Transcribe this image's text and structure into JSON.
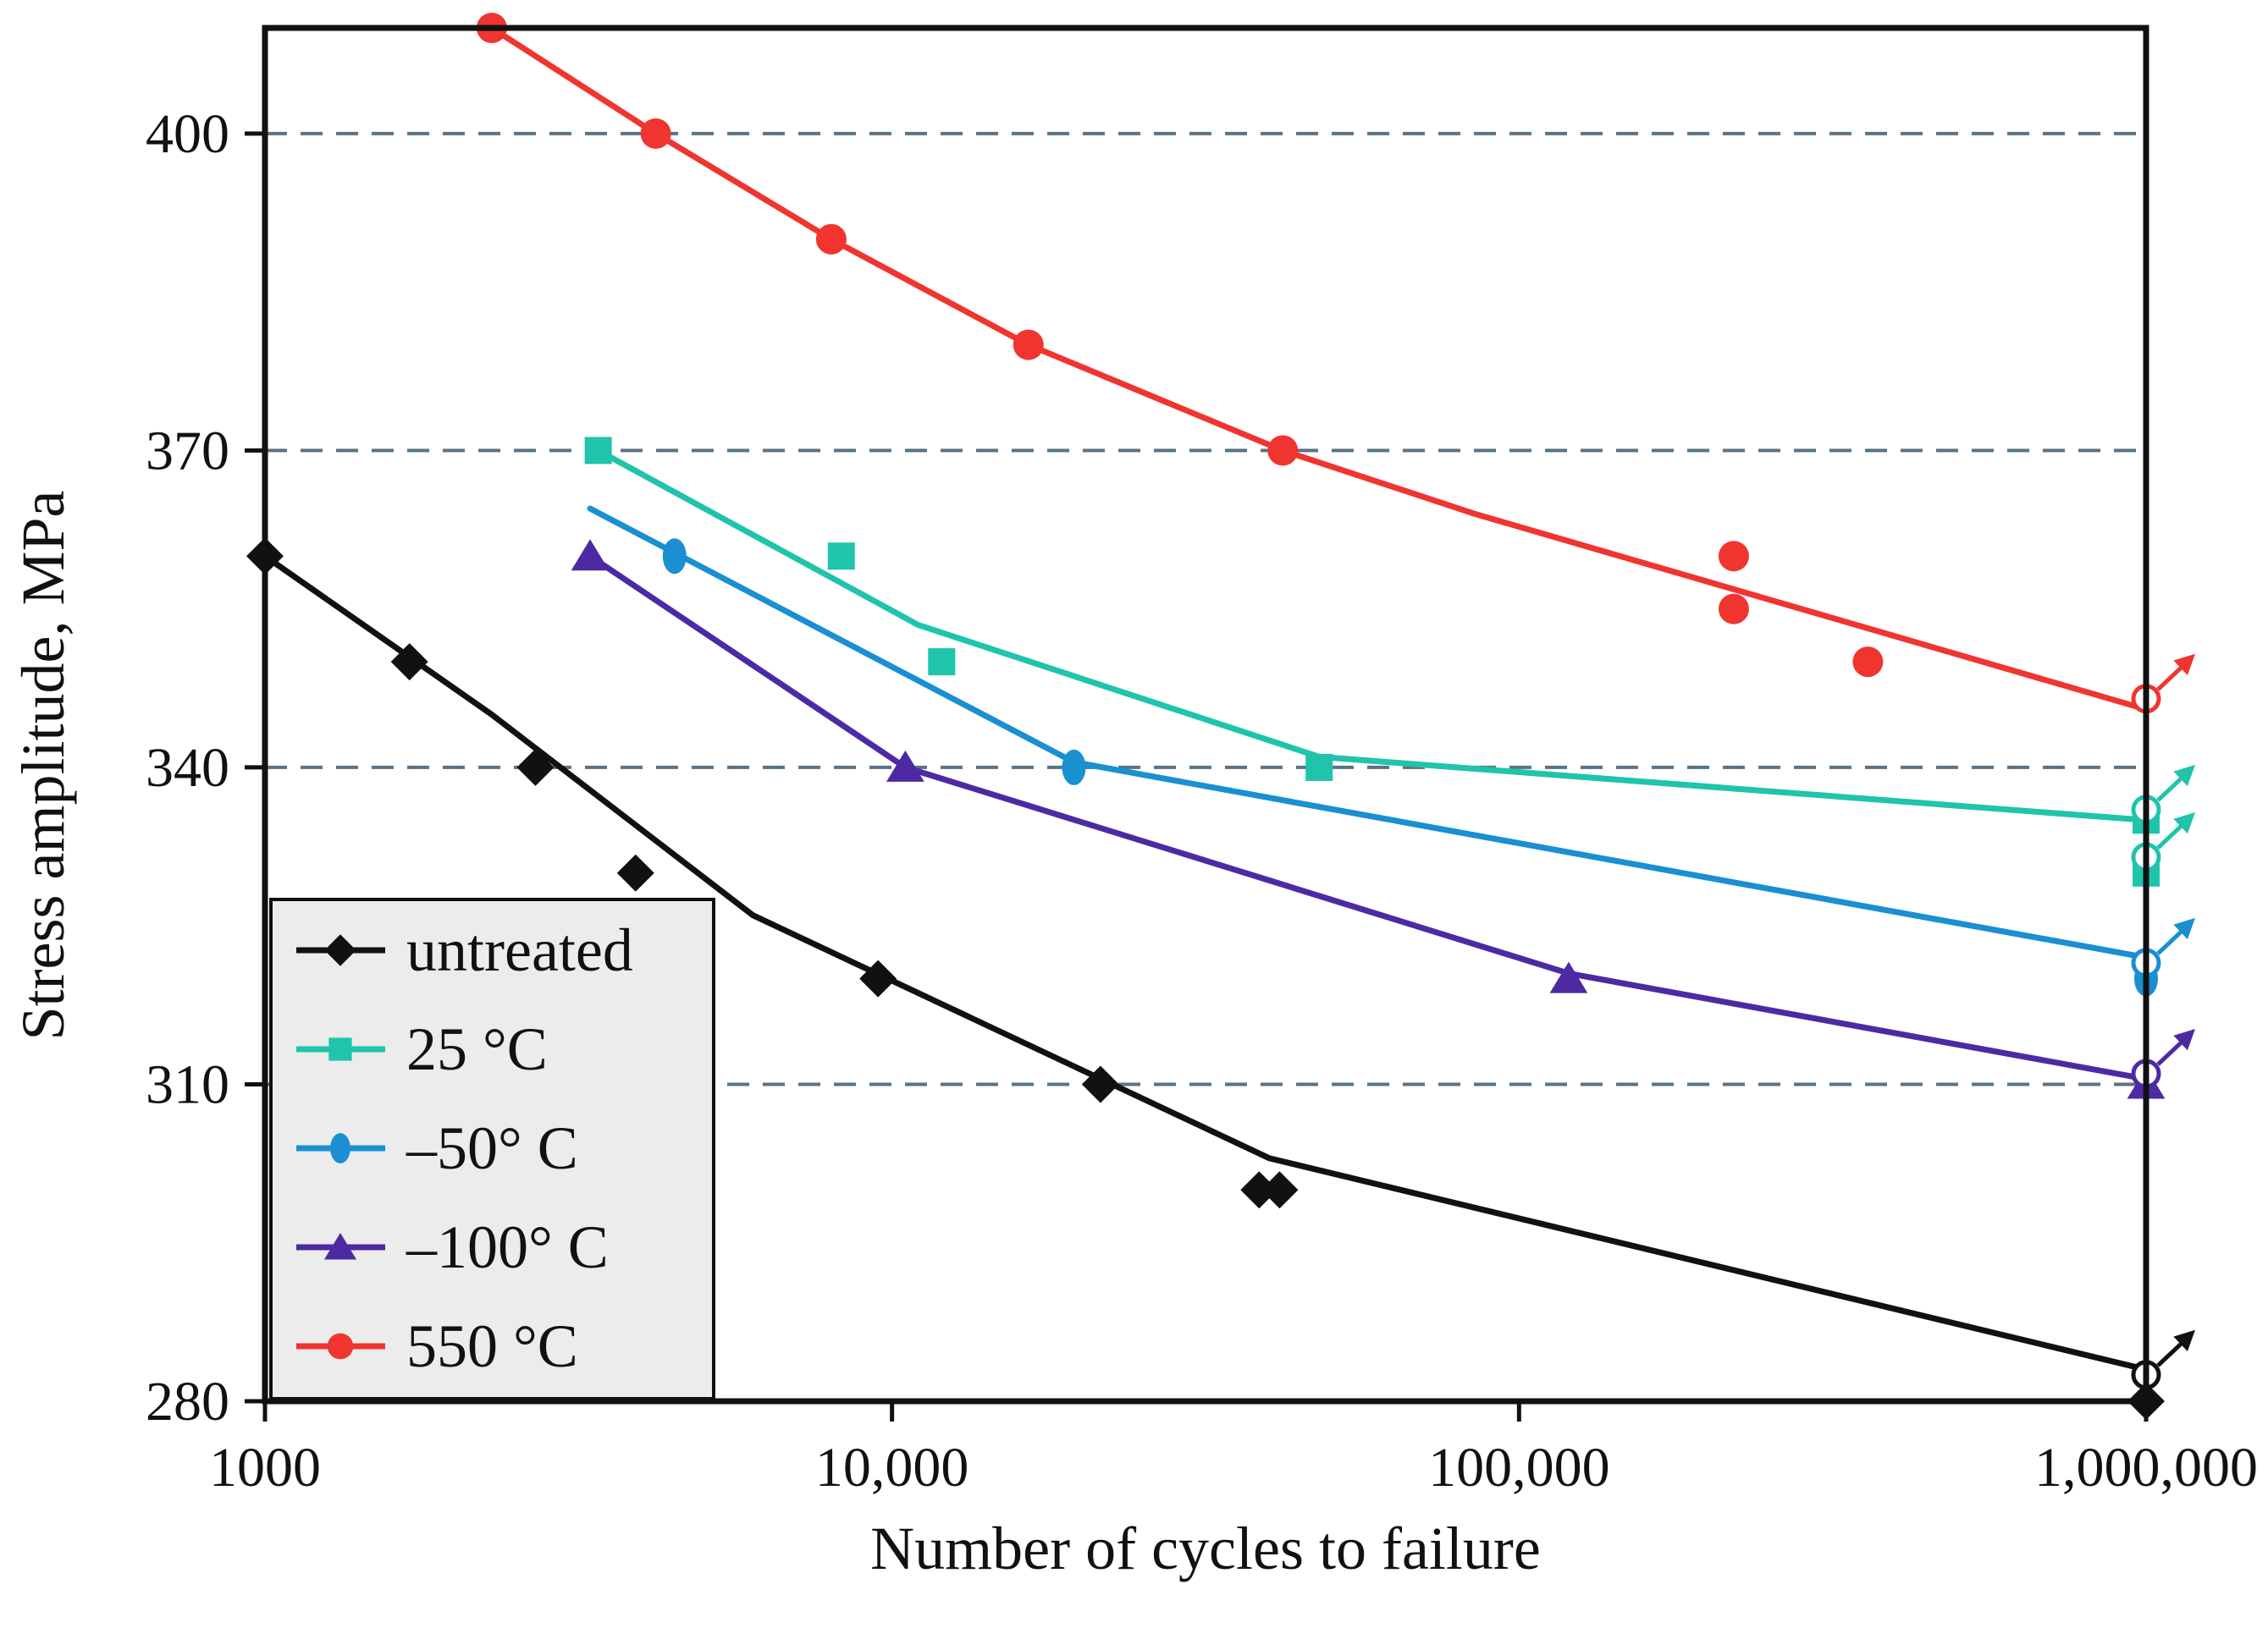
{
  "chart_data": {
    "type": "line",
    "title": "",
    "xlabel": "Number of cycles to failure",
    "ylabel": "Stress amplitude, MPa",
    "xscale": "log",
    "xlim": [
      1000,
      1000000
    ],
    "ylim": [
      280,
      410
    ],
    "xticks": [
      1000,
      10000,
      100000,
      1000000
    ],
    "xtick_labels": [
      "1000",
      "10,000",
      "100,000",
      "1,000,000"
    ],
    "yticks": [
      280,
      310,
      340,
      370,
      400
    ],
    "ytick_labels": [
      "280",
      "310",
      "340",
      "370",
      "400"
    ],
    "grid": "horizontal dashed at 310, 340, 370, 400",
    "legend_position": "bottom-left",
    "series": [
      {
        "name": "untreated",
        "color": "#111111",
        "marker": "diamond",
        "points": [
          [
            1000,
            360
          ],
          [
            1700,
            350
          ],
          [
            2700,
            340
          ],
          [
            3900,
            330
          ],
          [
            9500,
            320
          ],
          [
            21500,
            310
          ],
          [
            38500,
            300
          ],
          [
            41500,
            300
          ],
          [
            1000000,
            280
          ]
        ],
        "fit": [
          [
            1000,
            360
          ],
          [
            2300,
            345
          ],
          [
            6000,
            326
          ],
          [
            40000,
            303
          ],
          [
            1000000,
            283
          ]
        ],
        "runout": [
          1000000,
          282.5
        ]
      },
      {
        "name": "25 °C",
        "color": "#1fc4ab",
        "marker": "square",
        "points": [
          [
            3400,
            370
          ],
          [
            8300,
            360
          ],
          [
            12000,
            350
          ],
          [
            48000,
            340
          ],
          [
            1000000,
            335
          ],
          [
            1000000,
            330
          ]
        ],
        "fit": [
          [
            3400,
            370
          ],
          [
            11000,
            353.5
          ],
          [
            48000,
            341
          ],
          [
            1000000,
            335
          ]
        ],
        "runout": [
          [
            1000000,
            336
          ],
          [
            1000000,
            331.5
          ]
        ]
      },
      {
        "name": "–50° C",
        "color": "#1a8fd1",
        "marker": "ellipse",
        "points": [
          [
            4500,
            360
          ],
          [
            19500,
            340
          ],
          [
            1000000,
            320
          ]
        ],
        "fit": [
          [
            3300,
            364.5
          ],
          [
            19500,
            340.5
          ],
          [
            1000000,
            322
          ]
        ],
        "runout": [
          1000000,
          321.5
        ]
      },
      {
        "name": "–100° C",
        "color": "#4d2aa3",
        "marker": "triangle",
        "points": [
          [
            3300,
            360
          ],
          [
            10500,
            340
          ],
          [
            120000,
            320
          ],
          [
            1000000,
            310
          ]
        ],
        "fit": [
          [
            3300,
            360
          ],
          [
            10500,
            340
          ],
          [
            120000,
            320.5
          ],
          [
            1000000,
            310.5
          ]
        ],
        "runout": [
          1000000,
          311
        ]
      },
      {
        "name": "550 °C",
        "color": "#f03530",
        "marker": "circle",
        "points": [
          [
            2300,
            410
          ],
          [
            4200,
            400
          ],
          [
            8000,
            390
          ],
          [
            16500,
            380
          ],
          [
            42000,
            370
          ],
          [
            220000,
            360
          ],
          [
            220000,
            355
          ],
          [
            360000,
            350
          ]
        ],
        "fit": [
          [
            2300,
            410
          ],
          [
            4200,
            400
          ],
          [
            8000,
            390
          ],
          [
            16500,
            380
          ],
          [
            42000,
            370
          ],
          [
            85000,
            364
          ],
          [
            1000000,
            345.5
          ]
        ],
        "runout": [
          1000000,
          346.5
        ]
      }
    ],
    "legend": [
      {
        "label": "untreated",
        "color": "#111111",
        "marker": "diamond"
      },
      {
        "label": "25 °C",
        "color": "#1fc4ab",
        "marker": "square"
      },
      {
        "label": "–50° C",
        "color": "#1a8fd1",
        "marker": "ellipse"
      },
      {
        "label": "–100° C",
        "color": "#4d2aa3",
        "marker": "triangle"
      },
      {
        "label": "550 °C",
        "color": "#f03530",
        "marker": "circle"
      }
    ]
  }
}
